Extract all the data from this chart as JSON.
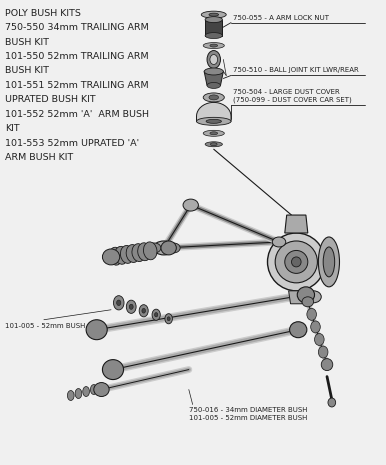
{
  "bg_color": "#f0f0f0",
  "text_color": "#222222",
  "title_lines": [
    "POLY BUSH KITS",
    "750-550 34mm TRAILING ARM",
    "BUSH KIT",
    "101-550 52mm TRAILING ARM",
    "BUSH KIT",
    "101-551 52mm TRAILING ARM",
    "UPRATED BUSH KIT",
    "101-552 52mm 'A'  ARM BUSH",
    "KIT",
    "101-553 52mm UPRATED 'A'",
    "ARM BUSH KIT"
  ],
  "label_lock_nut": "750-055 - A ARM LOCK NUT",
  "label_ball_joint": "750-510 - BALL JOINT KIT LWR/REAR",
  "label_dust_cover": "750-504 - LARGE DUST COVER\n(750-099 - DUST COVER CAR SET)",
  "label_bush_52": "101-005 - 52mm BUSH",
  "label_diam_bush": "750-016 - 34mm DIAMETER BUSH\n101-005 - 52mm DIAMETER BUSH",
  "font_size_title": 6.8,
  "font_size_labels": 5.0
}
